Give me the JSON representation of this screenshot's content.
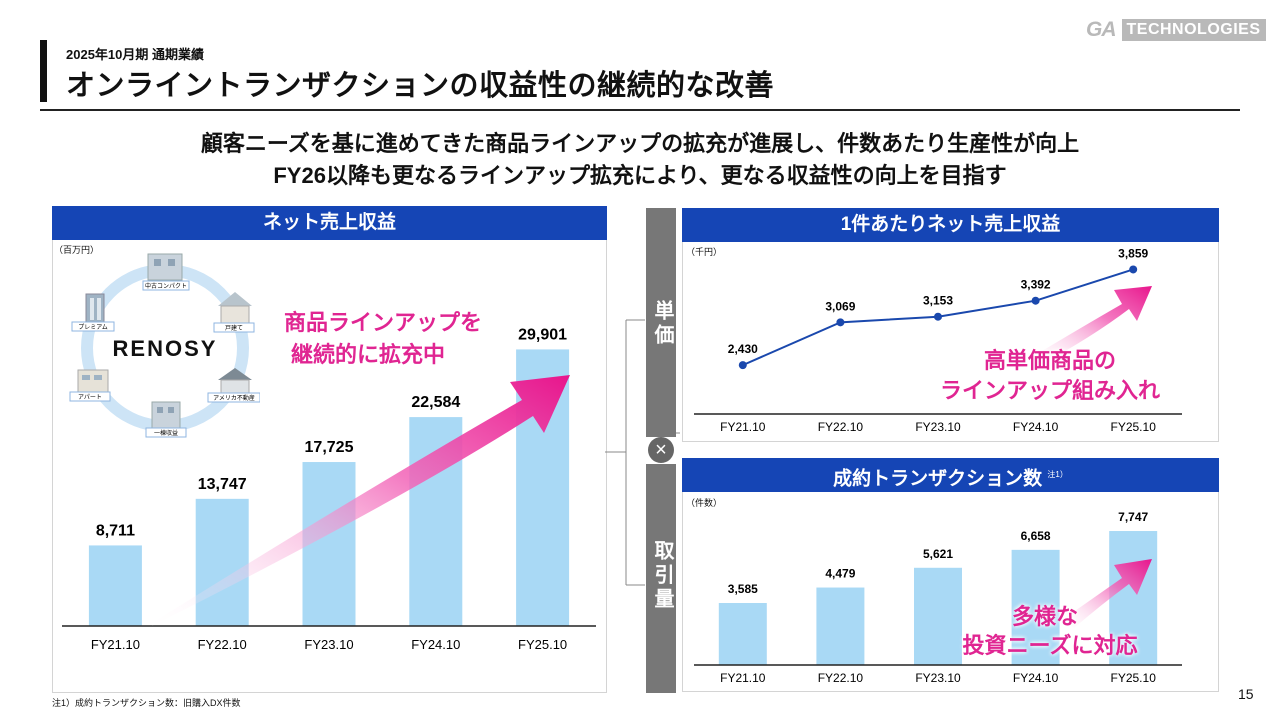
{
  "header": {
    "period": "2025年10月期 通期業績",
    "title": "オンライントランザクションの収益性の継続的な改善",
    "logo_ga": "GA",
    "logo_tech": "TECHNOLOGIES"
  },
  "subtitle": {
    "line1": "顧客ニーズを基に進めてきた商品ラインアップの拡充が進展し、件数あたり生産性が向上",
    "line2": "FY26以降も更なるラインアップ拡充により、更なる収益性の向上を目指す"
  },
  "left_panel": {
    "title": "ネット売上収益",
    "unit": "（百万円）",
    "callout_line1": "商品ラインアップを",
    "callout_line2": "継続的に拡充中",
    "renosy": {
      "brand": "RENOSY",
      "items": [
        "中古コンパクト",
        "戸建て",
        "アメリカ不動産",
        "一棟収益",
        "アパート",
        "プレミアム"
      ]
    }
  },
  "side_labels": {
    "top": "単価",
    "bottom": "取引量",
    "operator": "×"
  },
  "right_top": {
    "title": "1件あたりネット売上収益",
    "unit": "（千円）",
    "callout_line1": "高単価商品の",
    "callout_line2": "ラインアップ組み入れ"
  },
  "right_bottom": {
    "title": "成約トランザクション数",
    "note_mark": "注1）",
    "unit": "（件数）",
    "callout_line1": "多様な",
    "callout_line2": "投資ニーズに対応"
  },
  "footnote": "注1）成約トランザクション数：旧購入DX件数",
  "page_number": "15",
  "colors": {
    "bar": "#a9d9f5",
    "line": "#1a48ad",
    "header": "#1545b5",
    "accent": "#e02592"
  },
  "chart_data": [
    {
      "type": "bar",
      "title": "ネット売上収益",
      "ylabel": "百万円",
      "categories": [
        "FY21.10",
        "FY22.10",
        "FY23.10",
        "FY24.10",
        "FY25.10"
      ],
      "values": [
        8711,
        13747,
        17725,
        22584,
        29901
      ],
      "labels": [
        "8,711",
        "13,747",
        "17,725",
        "22,584",
        "29,901"
      ],
      "ylim": [
        0,
        32000
      ]
    },
    {
      "type": "line",
      "title": "1件あたりネット売上収益",
      "ylabel": "千円",
      "categories": [
        "FY21.10",
        "FY22.10",
        "FY23.10",
        "FY24.10",
        "FY25.10"
      ],
      "values": [
        2430,
        3069,
        3153,
        3392,
        3859
      ],
      "labels": [
        "2,430",
        "3,069",
        "3,153",
        "3,392",
        "3,859"
      ],
      "ylim": [
        1700,
        4000
      ]
    },
    {
      "type": "bar",
      "title": "成約トランザクション数",
      "ylabel": "件数",
      "categories": [
        "FY21.10",
        "FY22.10",
        "FY23.10",
        "FY24.10",
        "FY25.10"
      ],
      "values": [
        3585,
        4479,
        5621,
        6658,
        7747
      ],
      "labels": [
        "3,585",
        "4,479",
        "5,621",
        "6,658",
        "7,747"
      ],
      "ylim": [
        0,
        8500
      ]
    }
  ]
}
